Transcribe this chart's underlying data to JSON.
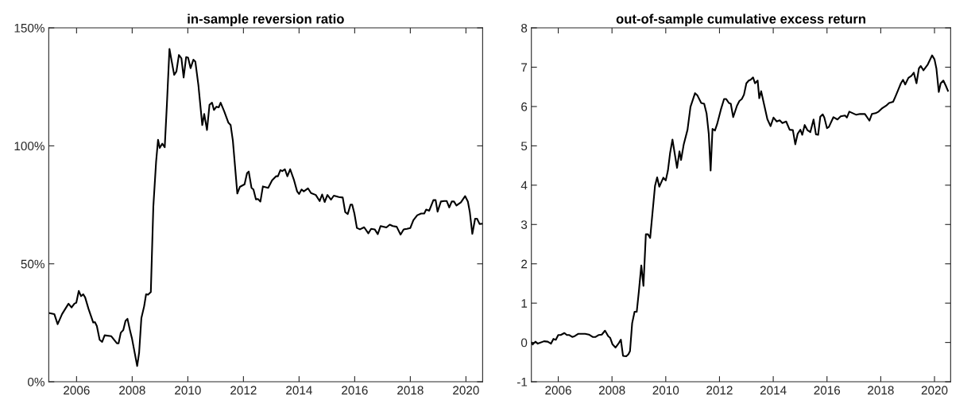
{
  "chart_data": [
    {
      "type": "line",
      "title": "in-sample reversion ratio",
      "xlim": [
        2005,
        2020.6
      ],
      "xticks": [
        2006,
        2008,
        2010,
        2012,
        2014,
        2016,
        2018,
        2020
      ],
      "ylim": [
        0,
        150
      ],
      "yticks": [
        {
          "value": 0,
          "label": "0%"
        },
        {
          "value": 50,
          "label": "50%"
        },
        {
          "value": 100,
          "label": "100%"
        },
        {
          "value": 150,
          "label": "150%"
        }
      ],
      "grid": false,
      "marker": "none",
      "line_style": "solid",
      "series": [
        {
          "color": "#000000",
          "x": [
            2005.0,
            2005.2,
            2005.32,
            2005.48,
            2005.71,
            2005.82,
            2005.92,
            2005.99,
            2006.08,
            2006.16,
            2006.24,
            2006.31,
            2006.43,
            2006.6,
            2006.66,
            2006.73,
            2006.83,
            2006.92,
            2007.01,
            2007.25,
            2007.45,
            2007.51,
            2007.59,
            2007.68,
            2007.76,
            2007.83,
            2007.93,
            2007.99,
            2008.18,
            2008.25,
            2008.33,
            2008.43,
            2008.5,
            2008.57,
            2008.67,
            2008.76,
            2008.86,
            2008.93,
            2008.99,
            2009.08,
            2009.17,
            2009.25,
            2009.34,
            2009.51,
            2009.59,
            2009.68,
            2009.77,
            2009.85,
            2009.94,
            2010.01,
            2010.1,
            2010.2,
            2010.27,
            2010.38,
            2010.52,
            2010.59,
            2010.69,
            2010.78,
            2010.87,
            2010.94,
            2011.03,
            2011.11,
            2011.18,
            2011.31,
            2011.46,
            2011.54,
            2011.62,
            2011.78,
            2011.87,
            2012.04,
            2012.13,
            2012.19,
            2012.29,
            2012.36,
            2012.45,
            2012.52,
            2012.61,
            2012.7,
            2012.89,
            2013.03,
            2013.17,
            2013.24,
            2013.33,
            2013.4,
            2013.49,
            2013.58,
            2013.68,
            2013.82,
            2013.93,
            2014.0,
            2014.09,
            2014.17,
            2014.32,
            2014.43,
            2014.6,
            2014.74,
            2014.83,
            2014.92,
            2015.02,
            2015.15,
            2015.25,
            2015.43,
            2015.57,
            2015.66,
            2015.75,
            2015.85,
            2015.91,
            2015.99,
            2016.08,
            2016.19,
            2016.34,
            2016.49,
            2016.59,
            2016.72,
            2016.83,
            2016.93,
            2017.14,
            2017.26,
            2017.37,
            2017.51,
            2017.65,
            2017.76,
            2017.88,
            2018.0,
            2018.11,
            2018.25,
            2018.39,
            2018.5,
            2018.57,
            2018.68,
            2018.83,
            2018.91,
            2018.98,
            2019.1,
            2019.22,
            2019.31,
            2019.4,
            2019.49,
            2019.57,
            2019.66,
            2019.82,
            2019.97,
            2020.07,
            2020.14,
            2020.23,
            2020.33,
            2020.4,
            2020.49,
            2020.6
          ],
          "values": [
            29.2,
            28.7,
            24.4,
            28.7,
            33.1,
            31.5,
            33.1,
            33.5,
            38.5,
            36.3,
            37.1,
            35.7,
            30.9,
            25.1,
            25.3,
            23.6,
            17.8,
            16.9,
            19.7,
            19.3,
            16.3,
            16.3,
            20.8,
            21.9,
            25.8,
            26.7,
            21.3,
            18.5,
            6.7,
            12.4,
            27.0,
            32.0,
            37.1,
            36.9,
            38.0,
            74.2,
            93.3,
            102.6,
            99.1,
            100.9,
            99.4,
            118.0,
            141.1,
            130.1,
            131.5,
            138.5,
            137.1,
            129.0,
            137.6,
            137.4,
            132.9,
            136.5,
            135.7,
            125.8,
            108.8,
            113.5,
            106.7,
            117.4,
            118.3,
            115.2,
            116.6,
            116.3,
            118.3,
            114.6,
            109.8,
            108.8,
            102.2,
            79.8,
            82.6,
            83.7,
            88.4,
            89.1,
            82.2,
            81.5,
            77.3,
            77.5,
            76.4,
            82.8,
            82.2,
            85.4,
            87.1,
            87.1,
            89.7,
            89.3,
            90.1,
            87.1,
            90.1,
            85.4,
            80.7,
            79.6,
            81.5,
            80.7,
            82.0,
            80.0,
            79.2,
            76.6,
            79.4,
            76.2,
            79.2,
            77.2,
            78.9,
            78.3,
            78.1,
            71.9,
            71.1,
            75.1,
            75.1,
            71.3,
            65.2,
            64.6,
            65.5,
            62.9,
            64.8,
            64.6,
            62.6,
            66.0,
            65.4,
            66.6,
            66.0,
            65.7,
            62.4,
            64.6,
            64.8,
            65.2,
            68.5,
            70.6,
            71.3,
            71.3,
            73.0,
            72.5,
            77.0,
            77.0,
            72.1,
            76.4,
            76.6,
            76.6,
            73.9,
            76.4,
            76.4,
            74.7,
            76.1,
            78.7,
            76.4,
            71.9,
            62.7,
            69.1,
            69.1,
            66.9,
            67.0
          ]
        }
      ]
    },
    {
      "type": "line",
      "title": "out-of-sample cumulative excess return",
      "xlim": [
        2005,
        2020.6
      ],
      "xticks": [
        2006,
        2008,
        2010,
        2012,
        2014,
        2016,
        2018,
        2020
      ],
      "ylim": [
        -1,
        8
      ],
      "yticks": [
        -1,
        0,
        1,
        2,
        3,
        4,
        5,
        6,
        7,
        8
      ],
      "grid": false,
      "marker": "none",
      "line_style": "solid",
      "series": [
        {
          "color": "#000000",
          "x": [
            2005.0,
            2005.05,
            2005.15,
            2005.24,
            2005.47,
            2005.61,
            2005.73,
            2005.82,
            2005.91,
            2006.0,
            2006.09,
            2006.23,
            2006.32,
            2006.4,
            2006.52,
            2006.61,
            2006.75,
            2007.0,
            2007.14,
            2007.28,
            2007.39,
            2007.51,
            2007.62,
            2007.74,
            2007.86,
            2007.93,
            2008.02,
            2008.13,
            2008.26,
            2008.33,
            2008.41,
            2008.53,
            2008.61,
            2008.67,
            2008.75,
            2008.84,
            2008.92,
            2009.0,
            2009.09,
            2009.17,
            2009.26,
            2009.34,
            2009.42,
            2009.51,
            2009.6,
            2009.68,
            2009.76,
            2009.91,
            2010.0,
            2010.08,
            2010.16,
            2010.25,
            2010.42,
            2010.51,
            2010.57,
            2010.67,
            2010.81,
            2010.92,
            2011.09,
            2011.18,
            2011.32,
            2011.43,
            2011.52,
            2011.6,
            2011.67,
            2011.74,
            2011.83,
            2011.91,
            2012.05,
            2012.17,
            2012.25,
            2012.35,
            2012.42,
            2012.51,
            2012.65,
            2012.74,
            2012.83,
            2012.91,
            2013.0,
            2013.09,
            2013.16,
            2013.25,
            2013.32,
            2013.42,
            2013.48,
            2013.55,
            2013.67,
            2013.78,
            2013.9,
            2014.01,
            2014.13,
            2014.24,
            2014.34,
            2014.48,
            2014.61,
            2014.73,
            2014.82,
            2014.91,
            2015.01,
            2015.08,
            2015.17,
            2015.27,
            2015.38,
            2015.5,
            2015.59,
            2015.67,
            2015.75,
            2015.84,
            2015.9,
            2016.0,
            2016.07,
            2016.24,
            2016.39,
            2016.51,
            2016.67,
            2016.74,
            2016.83,
            2017.09,
            2017.23,
            2017.41,
            2017.58,
            2017.67,
            2017.81,
            2017.92,
            2018.04,
            2018.2,
            2018.31,
            2018.46,
            2018.55,
            2018.66,
            2018.75,
            2018.83,
            2018.91,
            2019.03,
            2019.14,
            2019.23,
            2019.33,
            2019.42,
            2019.49,
            2019.59,
            2019.75,
            2019.91,
            2020.0,
            2020.07,
            2020.16,
            2020.23,
            2020.33,
            2020.42,
            2020.5
          ],
          "values": [
            0.0,
            -0.05,
            0.02,
            -0.03,
            0.03,
            0.02,
            -0.03,
            0.09,
            0.07,
            0.19,
            0.19,
            0.24,
            0.19,
            0.19,
            0.14,
            0.16,
            0.22,
            0.22,
            0.2,
            0.14,
            0.14,
            0.19,
            0.2,
            0.3,
            0.16,
            0.12,
            -0.05,
            -0.13,
            -0.01,
            0.07,
            -0.34,
            -0.35,
            -0.3,
            -0.22,
            0.49,
            0.78,
            0.78,
            1.3,
            1.96,
            1.44,
            2.75,
            2.75,
            2.66,
            3.32,
            3.98,
            4.2,
            3.96,
            4.19,
            4.12,
            4.37,
            4.81,
            5.16,
            4.44,
            4.86,
            4.64,
            5.04,
            5.41,
            5.99,
            6.34,
            6.28,
            6.09,
            6.07,
            5.82,
            5.31,
            4.37,
            5.43,
            5.39,
            5.55,
            5.92,
            6.19,
            6.19,
            6.09,
            6.07,
            5.73,
            6.02,
            6.14,
            6.19,
            6.3,
            6.59,
            6.66,
            6.68,
            6.74,
            6.59,
            6.66,
            6.21,
            6.39,
            6.02,
            5.68,
            5.5,
            5.72,
            5.62,
            5.65,
            5.58,
            5.62,
            5.41,
            5.4,
            5.04,
            5.31,
            5.41,
            5.28,
            5.53,
            5.4,
            5.35,
            5.67,
            5.29,
            5.28,
            5.74,
            5.8,
            5.72,
            5.45,
            5.48,
            5.73,
            5.67,
            5.75,
            5.77,
            5.72,
            5.87,
            5.79,
            5.81,
            5.81,
            5.64,
            5.81,
            5.83,
            5.87,
            5.95,
            6.02,
            6.09,
            6.12,
            6.26,
            6.44,
            6.59,
            6.68,
            6.56,
            6.73,
            6.78,
            6.86,
            6.59,
            6.97,
            7.03,
            6.92,
            7.07,
            7.3,
            7.2,
            6.97,
            6.37,
            6.59,
            6.66,
            6.53,
            6.4
          ]
        }
      ]
    }
  ]
}
